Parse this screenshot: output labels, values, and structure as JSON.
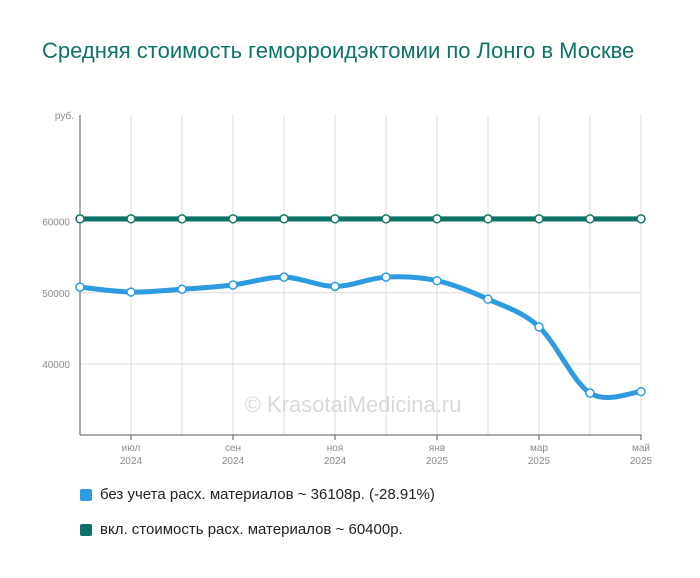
{
  "chart_data": {
    "type": "line",
    "title": "Средняя стоимость геморроидэктомии по Лонго в Москве",
    "y_unit": "руб.",
    "ylim": [
      30000,
      75000
    ],
    "y_ticks": [
      40000,
      50000,
      60000
    ],
    "y_tick_labels": [
      "40000",
      "50000",
      "60000"
    ],
    "x": [
      "2024-06",
      "2024-07",
      "2024-08",
      "2024-09",
      "2024-10",
      "2024-11",
      "2024-12",
      "2025-01",
      "2025-02",
      "2025-03",
      "2025-04",
      "2025-05"
    ],
    "x_tick_labels": [
      {
        "month": "июл",
        "year": "2024",
        "index": 1
      },
      {
        "month": "сен",
        "year": "2024",
        "index": 3
      },
      {
        "month": "ноя",
        "year": "2024",
        "index": 5
      },
      {
        "month": "янв",
        "year": "2025",
        "index": 7
      },
      {
        "month": "мар",
        "year": "2025",
        "index": 9
      },
      {
        "month": "май",
        "year": "2025",
        "index": 11
      }
    ],
    "series": [
      {
        "name": "без учета расх. материалов ~ 36108р. (-28.91%)",
        "color": "#2d9be0",
        "values": [
          50800,
          50100,
          50500,
          51100,
          52200,
          50900,
          52200,
          51700,
          49100,
          45200,
          35900,
          36108
        ]
      },
      {
        "name": "вкл. стоимость расх. материалов ~ 60400р.",
        "color": "#0e7367",
        "values": [
          60400,
          60400,
          60400,
          60400,
          60400,
          60400,
          60400,
          60400,
          60400,
          60400,
          60400,
          60400
        ]
      }
    ],
    "grid": true,
    "legend_position": "bottom-left",
    "watermark": "© KrasotaiMedicina.ru"
  }
}
